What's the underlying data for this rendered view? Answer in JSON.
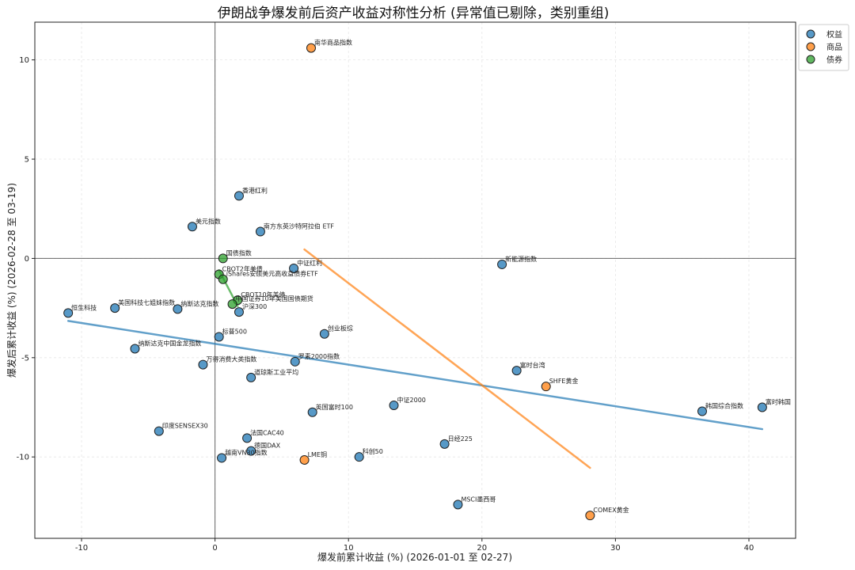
{
  "chart_data": {
    "type": "scatter",
    "title": "伊朗战争爆发前后资产收益对称性分析 (异常值已剔除，类别重组)",
    "xlabel": "爆发前累计收益 (%) (2026-01-01 至 02-27)",
    "ylabel": "爆发后累计收益 (%) (2026-02-28 至 03-19)",
    "xlim": [
      -13.5,
      43.5
    ],
    "ylim": [
      -14.1,
      11.9
    ],
    "xticks": [
      -10,
      0,
      10,
      20,
      30,
      40
    ],
    "yticks": [
      -10,
      -5,
      0,
      5,
      10
    ],
    "grid": true,
    "legend_position": "top-right",
    "series": [
      {
        "name": "权益",
        "color": "#1f77b4",
        "points": [
          {
            "label": "恒生科技",
            "x": -11.0,
            "y": -2.75
          },
          {
            "label": "美国科技七姐妹指数",
            "x": -7.5,
            "y": -2.5
          },
          {
            "label": "纳斯达克指数",
            "x": -2.8,
            "y": -2.55
          },
          {
            "label": "美元指数",
            "x": -1.7,
            "y": 1.6
          },
          {
            "label": "香港红利",
            "x": 1.8,
            "y": 3.15
          },
          {
            "label": "南方东英沙特阿拉伯 ETF",
            "x": 3.4,
            "y": 1.35
          },
          {
            "label": "中证红利",
            "x": 5.9,
            "y": -0.5
          },
          {
            "label": "沪深300",
            "x": 1.8,
            "y": -2.7
          },
          {
            "label": "标普500",
            "x": 0.3,
            "y": -3.95
          },
          {
            "label": "纳斯达克中国金龙指数",
            "x": -6.0,
            "y": -4.55
          },
          {
            "label": "万得消费大类指数",
            "x": -0.9,
            "y": -5.35
          },
          {
            "label": "道琼斯工业平均",
            "x": 2.7,
            "y": -6.0
          },
          {
            "label": "罗素2000指数",
            "x": 6.0,
            "y": -5.2
          },
          {
            "label": "创业板综",
            "x": 8.2,
            "y": -3.8
          },
          {
            "label": "新能源指数",
            "x": 21.5,
            "y": -0.3
          },
          {
            "label": "富时台湾",
            "x": 22.6,
            "y": -5.65
          },
          {
            "label": "中证2000",
            "x": 13.4,
            "y": -7.4
          },
          {
            "label": "英国富时100",
            "x": 7.3,
            "y": -7.75
          },
          {
            "label": "印度SENSEX30",
            "x": -4.2,
            "y": -8.7
          },
          {
            "label": "法国CAC40",
            "x": 2.4,
            "y": -9.05
          },
          {
            "label": "德国DAX",
            "x": 2.7,
            "y": -9.7
          },
          {
            "label": "越南VN30指数",
            "x": 0.5,
            "y": -10.05
          },
          {
            "label": "科创50",
            "x": 10.8,
            "y": -10.0
          },
          {
            "label": "日经225",
            "x": 17.2,
            "y": -9.35
          },
          {
            "label": "MSCI墨西哥",
            "x": 18.2,
            "y": -12.4
          },
          {
            "label": "韩国综合指数",
            "x": 36.5,
            "y": -7.7
          },
          {
            "label": "富时韩国",
            "x": 41.0,
            "y": -7.5
          }
        ]
      },
      {
        "name": "商品",
        "color": "#ff7f0e",
        "points": [
          {
            "label": "南华商品指数",
            "x": 7.2,
            "y": 10.6
          },
          {
            "label": "SHFE黄金",
            "x": 24.8,
            "y": -6.45
          },
          {
            "label": "LME铜",
            "x": 6.7,
            "y": -10.15
          },
          {
            "label": "COMEX黄金",
            "x": 28.1,
            "y": -12.95
          }
        ]
      },
      {
        "name": "债券",
        "color": "#2ca02c",
        "points": [
          {
            "label": "国债指数",
            "x": 0.6,
            "y": 0.0
          },
          {
            "label": "CBOT2年美债",
            "x": 0.3,
            "y": -0.8
          },
          {
            "label": "iShares安硕美元高收益债券ETF",
            "x": 0.6,
            "y": -1.05
          },
          {
            "label": "CBOT10年美债",
            "x": 1.7,
            "y": -2.1
          },
          {
            "label": "中国证券10年美国国债期货",
            "x": 1.3,
            "y": -2.3
          }
        ]
      }
    ],
    "trendlines": [
      {
        "series": "权益",
        "color": "#1f77b4",
        "from": {
          "x": -11.0,
          "y": -3.15
        },
        "to": {
          "x": 41.0,
          "y": -8.6
        }
      },
      {
        "series": "商品",
        "color": "#ff7f0e",
        "from": {
          "x": 6.7,
          "y": 0.45
        },
        "to": {
          "x": 28.1,
          "y": -10.55
        }
      },
      {
        "series": "债券",
        "color": "#2ca02c",
        "from": {
          "x": 0.3,
          "y": -0.6
        },
        "to": {
          "x": 1.7,
          "y": -2.4
        }
      }
    ]
  }
}
